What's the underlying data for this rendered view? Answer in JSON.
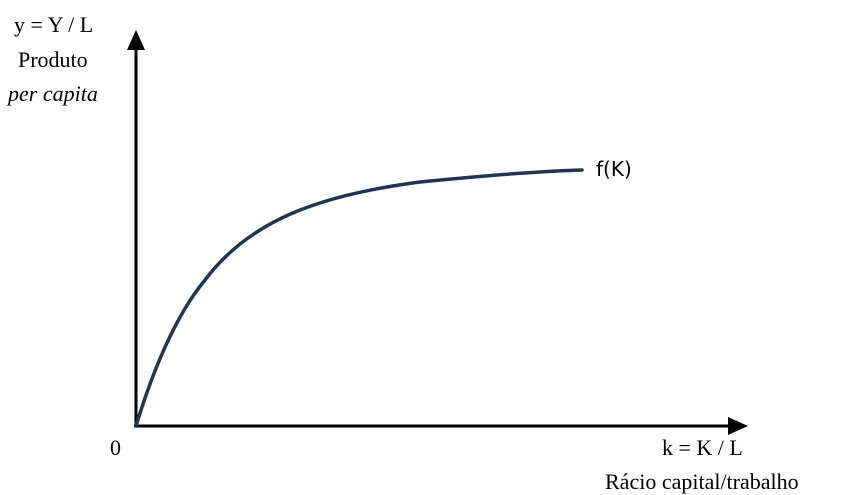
{
  "y_axis": {
    "label_line1": "y = Y / L",
    "label_line2": "Produto",
    "label_line3": "per capita"
  },
  "x_axis": {
    "label_line1": "k = K / L",
    "label_line2": "Rácio capital/trabalho"
  },
  "origin_label": "0",
  "curve": {
    "label": "f(K)",
    "color": "#1f3552"
  }
}
